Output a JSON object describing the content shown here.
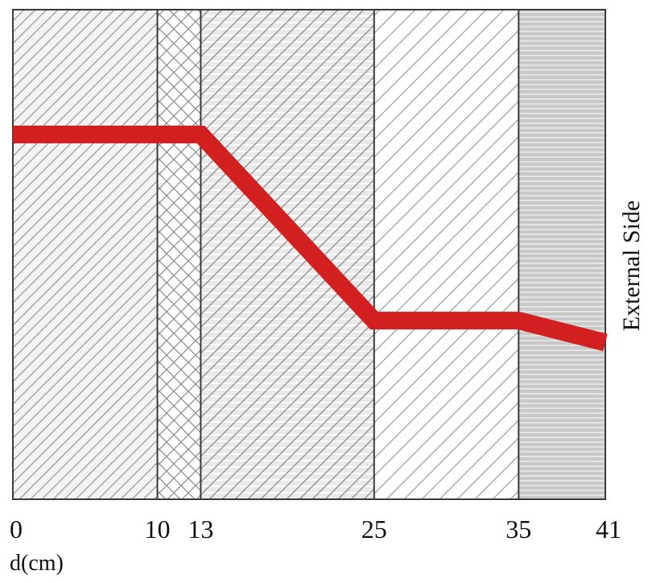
{
  "diagram": {
    "x_axis": {
      "label": "d(cm)",
      "ticks": [
        "0",
        "10",
        "13",
        "25",
        "35",
        "41"
      ]
    },
    "side_label": "External Side",
    "layers": [
      {
        "from": 0,
        "to": 10,
        "pattern": "diagonal-fine"
      },
      {
        "from": 10,
        "to": 13,
        "pattern": "crosshatch"
      },
      {
        "from": 13,
        "to": 25,
        "pattern": "diagonal-horizontal"
      },
      {
        "from": 25,
        "to": 35,
        "pattern": "diagonal-wide"
      },
      {
        "from": 35,
        "to": 41,
        "pattern": "horizontal-gray"
      }
    ],
    "profile": {
      "color": "#d21f1f",
      "points": [
        {
          "d": 0,
          "level": 0.745
        },
        {
          "d": 13,
          "level": 0.745
        },
        {
          "d": 25,
          "level": 0.365
        },
        {
          "d": 35,
          "level": 0.365
        },
        {
          "d": 41,
          "level": 0.32
        }
      ]
    }
  }
}
